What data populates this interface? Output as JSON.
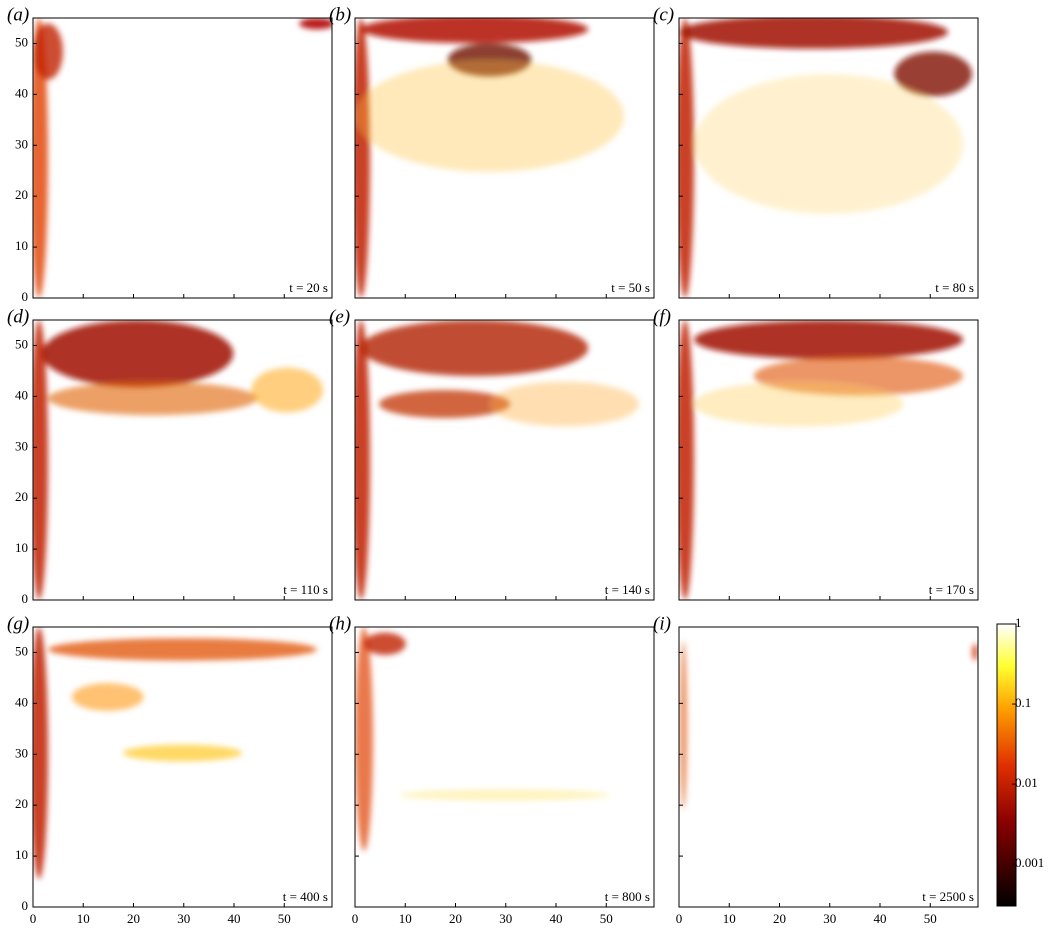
{
  "chart_data": [
    {
      "type": "heatmap",
      "label": "(a)",
      "annotation": "t = 20 s"
    },
    {
      "type": "heatmap",
      "label": "(b)",
      "annotation": "t = 50 s"
    },
    {
      "type": "heatmap",
      "label": "(c)",
      "annotation": "t = 80 s"
    },
    {
      "type": "heatmap",
      "label": "(d)",
      "annotation": "t = 110 s"
    },
    {
      "type": "heatmap",
      "label": "(e)",
      "annotation": "t = 140 s"
    },
    {
      "type": "heatmap",
      "label": "(f)",
      "annotation": "t = 170 s"
    },
    {
      "type": "heatmap",
      "label": "(g)",
      "annotation": "t = 400 s"
    },
    {
      "type": "heatmap",
      "label": "(h)",
      "annotation": "t = 800 s"
    },
    {
      "type": "heatmap",
      "label": "(i)",
      "annotation": "t = 2500 s"
    }
  ],
  "axes": {
    "xlim": [
      0,
      59.5
    ],
    "ylim": [
      0,
      55
    ],
    "xticks": [
      0,
      10,
      20,
      30,
      40,
      50
    ],
    "yticks": [
      0,
      10,
      20,
      30,
      40,
      50
    ]
  },
  "colorbar": {
    "scale": "log",
    "lim": [
      0.0003,
      1
    ],
    "ticks": [
      1,
      0.1,
      0.01,
      0.001
    ]
  }
}
